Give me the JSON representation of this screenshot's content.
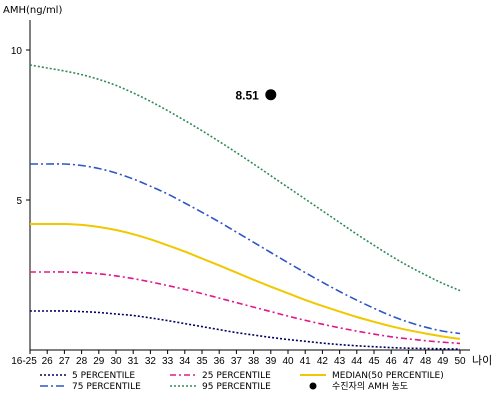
{
  "chart_data": {
    "type": "line",
    "ylabel": "AMH(ng/ml)",
    "xlabel": "나이",
    "ylim": [
      0,
      11
    ],
    "yticks": [
      5,
      10
    ],
    "categories": [
      "16-25",
      "26",
      "27",
      "28",
      "29",
      "30",
      "31",
      "32",
      "33",
      "34",
      "35",
      "36",
      "37",
      "38",
      "39",
      "40",
      "41",
      "42",
      "43",
      "44",
      "45",
      "46",
      "47",
      "48",
      "49",
      "50"
    ],
    "series": [
      {
        "name": "5 PERCENTILE",
        "color": "#000060",
        "dash": "2,2",
        "values": [
          1.3,
          1.3,
          1.3,
          1.28,
          1.25,
          1.2,
          1.15,
          1.07,
          0.98,
          0.88,
          0.78,
          0.68,
          0.58,
          0.5,
          0.42,
          0.35,
          0.29,
          0.23,
          0.18,
          0.14,
          0.11,
          0.08,
          0.06,
          0.05,
          0.04,
          0.03
        ]
      },
      {
        "name": "25 PERCENTILE",
        "color": "#e0188c",
        "dash": "6,3,2,3",
        "values": [
          2.6,
          2.6,
          2.6,
          2.58,
          2.54,
          2.47,
          2.38,
          2.27,
          2.15,
          2.02,
          1.88,
          1.73,
          1.58,
          1.43,
          1.28,
          1.13,
          0.99,
          0.86,
          0.74,
          0.63,
          0.53,
          0.44,
          0.37,
          0.31,
          0.26,
          0.22
        ]
      },
      {
        "name": "MEDIAN(50 PERCENTILE)",
        "color": "#f0c800",
        "dash": "",
        "values": [
          4.2,
          4.2,
          4.2,
          4.17,
          4.1,
          4.0,
          3.86,
          3.69,
          3.49,
          3.28,
          3.05,
          2.82,
          2.58,
          2.34,
          2.11,
          1.89,
          1.67,
          1.47,
          1.28,
          1.1,
          0.94,
          0.79,
          0.66,
          0.55,
          0.45,
          0.37
        ]
      },
      {
        "name": "75 PERCENTILE",
        "color": "#2f56c8",
        "dash": "8,3,2,3",
        "values": [
          6.2,
          6.2,
          6.2,
          6.15,
          6.05,
          5.9,
          5.7,
          5.46,
          5.2,
          4.9,
          4.59,
          4.27,
          3.93,
          3.59,
          3.25,
          2.91,
          2.58,
          2.26,
          1.95,
          1.66,
          1.39,
          1.14,
          0.93,
          0.76,
          0.63,
          0.55
        ]
      },
      {
        "name": "95 PERCENTILE",
        "color": "#2e8b57",
        "dash": "2,2",
        "values": [
          9.5,
          9.4,
          9.3,
          9.18,
          9.02,
          8.82,
          8.57,
          8.29,
          7.98,
          7.65,
          7.31,
          6.95,
          6.58,
          6.2,
          5.81,
          5.42,
          5.03,
          4.64,
          4.25,
          3.86,
          3.49,
          3.13,
          2.8,
          2.5,
          2.22,
          1.98
        ]
      }
    ],
    "points": [
      {
        "name": "수진자의 AMH 농도",
        "x": "39",
        "y": 8.51,
        "label": "8.51",
        "color": "#000000"
      }
    ],
    "legend_position": "bottom",
    "grid": false
  }
}
